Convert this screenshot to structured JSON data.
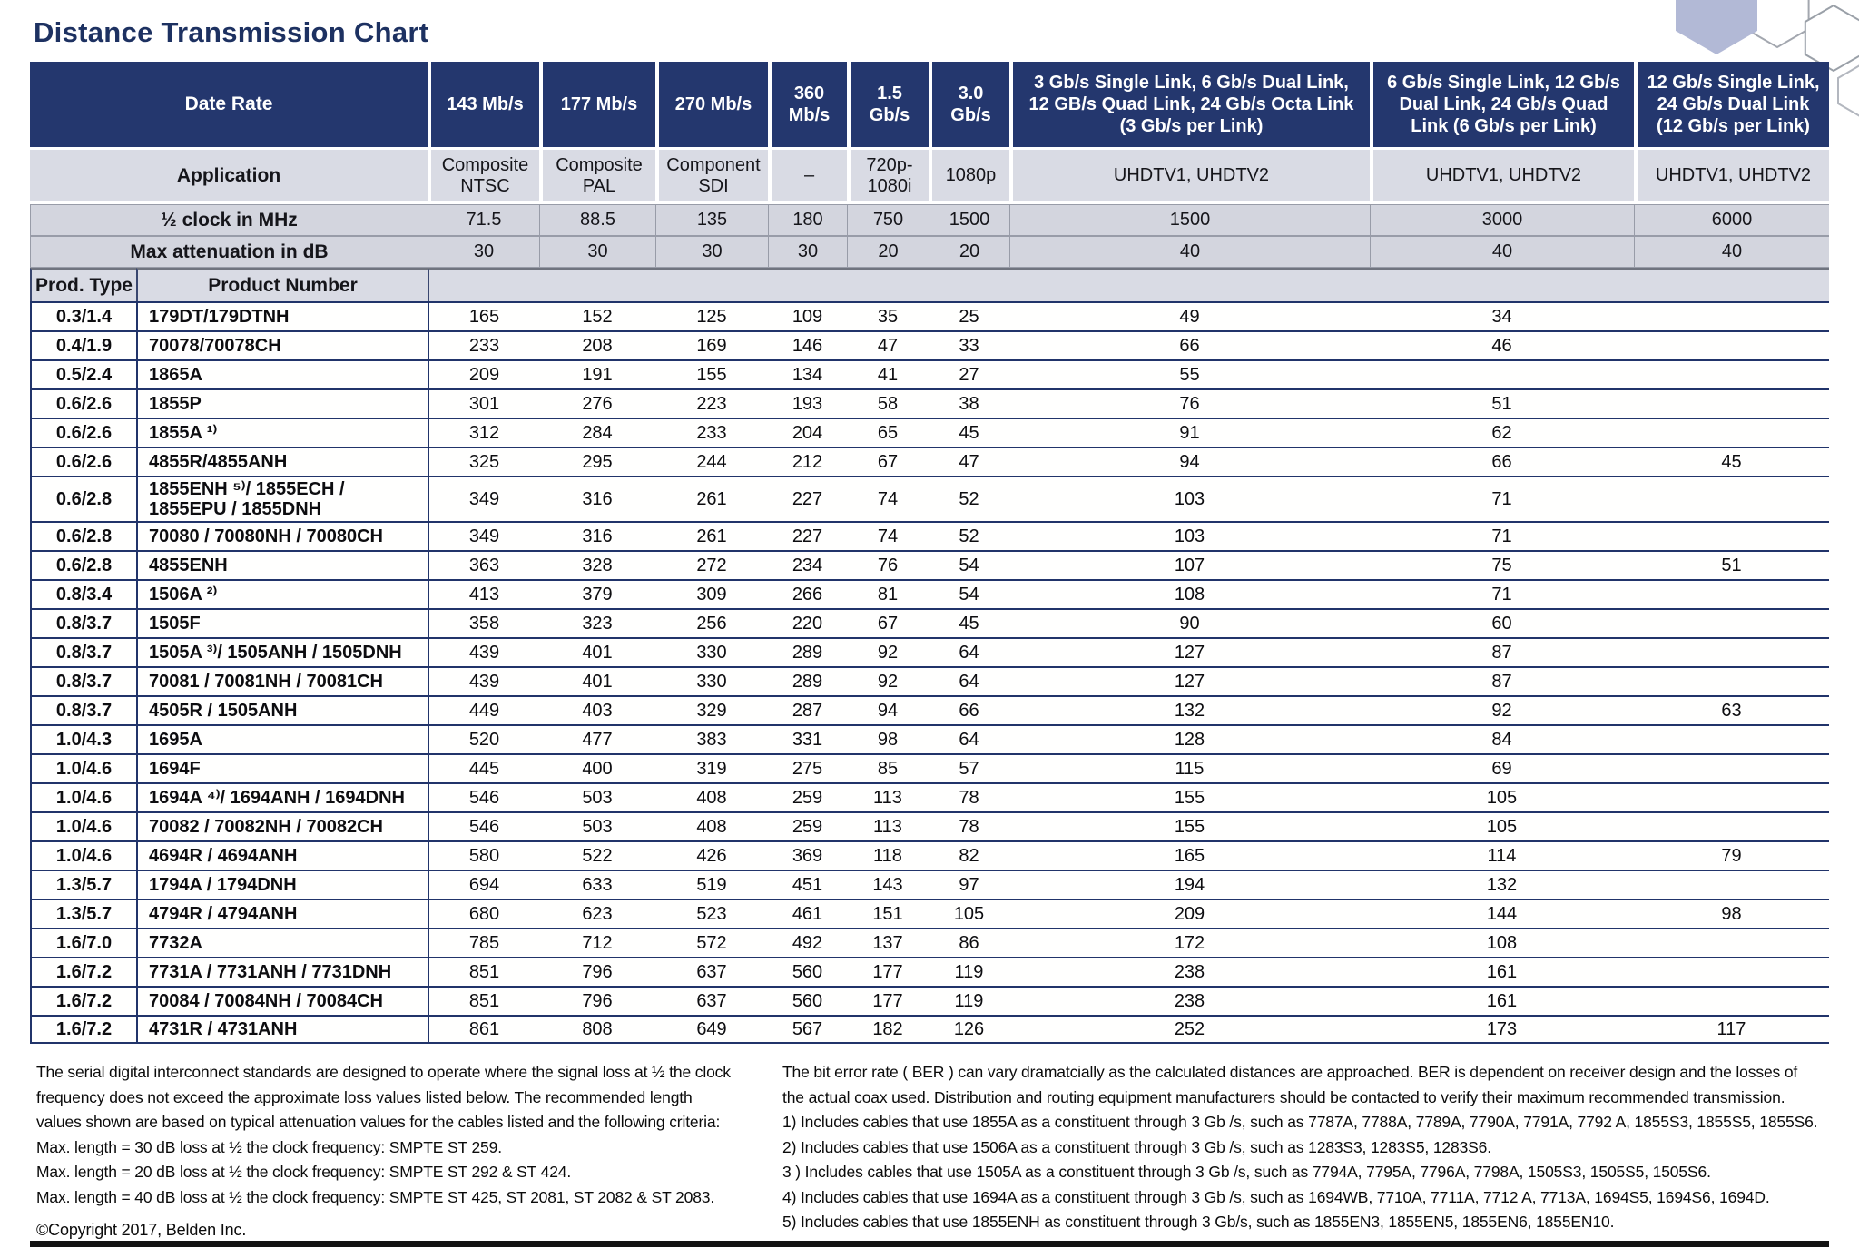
{
  "title": "Distance Transmission Chart",
  "colors": {
    "header_navy": "#24376e",
    "band_gray": "#d9dbe4",
    "row_line_navy": "#21346a",
    "hexagon_fill": "#b2b9d6"
  },
  "table": {
    "corner_labels": {
      "date_rate": "Date Rate",
      "application": "Application",
      "half_clock": "½ clock in MHz",
      "max_attenuation": "Max attenuation in dB",
      "prod_type": "Prod. Type",
      "product_number": "Product Number"
    },
    "columns": [
      {
        "rate": "143 Mb/s",
        "application": "Composite NTSC",
        "half_clock_mhz": "71.5",
        "max_attenuation_db": "30"
      },
      {
        "rate": "177 Mb/s",
        "application": "Composite PAL",
        "half_clock_mhz": "88.5",
        "max_attenuation_db": "30"
      },
      {
        "rate": "270 Mb/s",
        "application": "Component SDI",
        "half_clock_mhz": "135",
        "max_attenuation_db": "30"
      },
      {
        "rate": "360 Mb/s",
        "application": "–",
        "half_clock_mhz": "180",
        "max_attenuation_db": "30"
      },
      {
        "rate": "1.5 Gb/s",
        "application": "720p-1080i",
        "half_clock_mhz": "750",
        "max_attenuation_db": "20"
      },
      {
        "rate": "3.0 Gb/s",
        "application": "1080p",
        "half_clock_mhz": "1500",
        "max_attenuation_db": "20"
      },
      {
        "rate": "3 Gb/s Single Link, 6 Gb/s Dual Link, 12 GB/s Quad Link, 24 Gb/s Octa Link (3 Gb/s per Link)",
        "application": "UHDTV1, UHDTV2",
        "half_clock_mhz": "1500",
        "max_attenuation_db": "40"
      },
      {
        "rate": "6 Gb/s Single Link, 12 Gb/s Dual Link, 24 Gb/s Quad Link (6 Gb/s per Link)",
        "application": "UHDTV1, UHDTV2",
        "half_clock_mhz": "3000",
        "max_attenuation_db": "40"
      },
      {
        "rate": "12 Gb/s Single Link, 24 Gb/s Dual Link (12 Gb/s per Link)",
        "application": "UHDTV1, UHDTV2",
        "half_clock_mhz": "6000",
        "max_attenuation_db": "40"
      }
    ],
    "rows": [
      {
        "prod_type": "0.3/1.4",
        "product_number": "179DT/179DTNH",
        "distances": [
          "165",
          "152",
          "125",
          "109",
          "35",
          "25",
          "49",
          "34",
          ""
        ]
      },
      {
        "prod_type": "0.4/1.9",
        "product_number": "70078/70078CH",
        "distances": [
          "233",
          "208",
          "169",
          "146",
          "47",
          "33",
          "66",
          "46",
          ""
        ]
      },
      {
        "prod_type": "0.5/2.4",
        "product_number": "1865A",
        "distances": [
          "209",
          "191",
          "155",
          "134",
          "41",
          "27",
          "55",
          "",
          ""
        ]
      },
      {
        "prod_type": "0.6/2.6",
        "product_number": "1855P",
        "distances": [
          "301",
          "276",
          "223",
          "193",
          "58",
          "38",
          "76",
          "51",
          ""
        ]
      },
      {
        "prod_type": "0.6/2.6",
        "product_number": "1855A ¹⁾",
        "distances": [
          "312",
          "284",
          "233",
          "204",
          "65",
          "45",
          "91",
          "62",
          ""
        ]
      },
      {
        "prod_type": "0.6/2.6",
        "product_number": "4855R/4855ANH",
        "distances": [
          "325",
          "295",
          "244",
          "212",
          "67",
          "47",
          "94",
          "66",
          "45"
        ]
      },
      {
        "prod_type": "0.6/2.8",
        "product_number": "1855ENH ⁵⁾/ 1855ECH / 1855EPU / 1855DNH",
        "distances": [
          "349",
          "316",
          "261",
          "227",
          "74",
          "52",
          "103",
          "71",
          ""
        ]
      },
      {
        "prod_type": "0.6/2.8",
        "product_number": "70080 / 70080NH / 70080CH",
        "distances": [
          "349",
          "316",
          "261",
          "227",
          "74",
          "52",
          "103",
          "71",
          ""
        ]
      },
      {
        "prod_type": "0.6/2.8",
        "product_number": "4855ENH",
        "distances": [
          "363",
          "328",
          "272",
          "234",
          "76",
          "54",
          "107",
          "75",
          "51"
        ]
      },
      {
        "prod_type": "0.8/3.4",
        "product_number": "1506A ²⁾",
        "distances": [
          "413",
          "379",
          "309",
          "266",
          "81",
          "54",
          "108",
          "71",
          ""
        ]
      },
      {
        "prod_type": "0.8/3.7",
        "product_number": "1505F",
        "distances": [
          "358",
          "323",
          "256",
          "220",
          "67",
          "45",
          "90",
          "60",
          ""
        ]
      },
      {
        "prod_type": "0.8/3.7",
        "product_number": "1505A ³⁾/ 1505ANH / 1505DNH",
        "distances": [
          "439",
          "401",
          "330",
          "289",
          "92",
          "64",
          "127",
          "87",
          ""
        ]
      },
      {
        "prod_type": "0.8/3.7",
        "product_number": "70081 / 70081NH / 70081CH",
        "distances": [
          "439",
          "401",
          "330",
          "289",
          "92",
          "64",
          "127",
          "87",
          ""
        ]
      },
      {
        "prod_type": "0.8/3.7",
        "product_number": "4505R / 1505ANH",
        "distances": [
          "449",
          "403",
          "329",
          "287",
          "94",
          "66",
          "132",
          "92",
          "63"
        ]
      },
      {
        "prod_type": "1.0/4.3",
        "product_number": "1695A",
        "distances": [
          "520",
          "477",
          "383",
          "331",
          "98",
          "64",
          "128",
          "84",
          ""
        ]
      },
      {
        "prod_type": "1.0/4.6",
        "product_number": "1694F",
        "distances": [
          "445",
          "400",
          "319",
          "275",
          "85",
          "57",
          "115",
          "69",
          ""
        ]
      },
      {
        "prod_type": "1.0/4.6",
        "product_number": "1694A ⁴⁾/ 1694ANH / 1694DNH",
        "distances": [
          "546",
          "503",
          "408",
          "259",
          "113",
          "78",
          "155",
          "105",
          ""
        ]
      },
      {
        "prod_type": "1.0/4.6",
        "product_number": "70082 / 70082NH / 70082CH",
        "distances": [
          "546",
          "503",
          "408",
          "259",
          "113",
          "78",
          "155",
          "105",
          ""
        ]
      },
      {
        "prod_type": "1.0/4.6",
        "product_number": "4694R / 4694ANH",
        "distances": [
          "580",
          "522",
          "426",
          "369",
          "118",
          "82",
          "165",
          "114",
          "79"
        ]
      },
      {
        "prod_type": "1.3/5.7",
        "product_number": "1794A / 1794DNH",
        "distances": [
          "694",
          "633",
          "519",
          "451",
          "143",
          "97",
          "194",
          "132",
          ""
        ]
      },
      {
        "prod_type": "1.3/5.7",
        "product_number": "4794R / 4794ANH",
        "distances": [
          "680",
          "623",
          "523",
          "461",
          "151",
          "105",
          "209",
          "144",
          "98"
        ]
      },
      {
        "prod_type": "1.6/7.0",
        "product_number": "7732A",
        "distances": [
          "785",
          "712",
          "572",
          "492",
          "137",
          "86",
          "172",
          "108",
          ""
        ]
      },
      {
        "prod_type": "1.6/7.2",
        "product_number": "7731A / 7731ANH / 7731DNH",
        "distances": [
          "851",
          "796",
          "637",
          "560",
          "177",
          "119",
          "238",
          "161",
          ""
        ]
      },
      {
        "prod_type": "1.6/7.2",
        "product_number": "70084 / 70084NH / 70084CH",
        "distances": [
          "851",
          "796",
          "637",
          "560",
          "177",
          "119",
          "238",
          "161",
          ""
        ]
      },
      {
        "prod_type": "1.6/7.2",
        "product_number": "4731R / 4731ANH",
        "distances": [
          "861",
          "808",
          "649",
          "567",
          "182",
          "126",
          "252",
          "173",
          "117"
        ]
      }
    ]
  },
  "footnotes": {
    "left_lines": [
      "The serial digital interconnect standards are designed to operate where the signal loss at ½ the clock",
      "frequency does not exceed the approximate loss values listed below. The recommended length",
      "values shown are based on typical attenuation values for the cables listed and the following criteria:",
      "Max. length = 30 dB loss at ½ the clock frequency: SMPTE ST 259.",
      "Max. length = 20 dB loss at ½ the clock frequency: SMPTE ST 292 & ST 424.",
      "Max. length = 40 dB loss at ½ the clock frequency: SMPTE ST 425, ST 2081, ST 2082 & ST 2083."
    ],
    "copyright": "©Copyright 2017, Belden Inc.",
    "right_lines": [
      "The bit error rate ( BER ) can vary dramatcially as the calculated distances are approached. BER is dependent on receiver design and the losses of",
      "the actual coax used. Distribution and routing equipment manufacturers should be contacted to verify their maximum recommended transmission.",
      "1) Includes cables that use 1855A as a constituent through 3 Gb /s, such as 7787A, 7788A, 7789A, 7790A, 7791A, 7792 A, 1855S3, 1855S5, 1855S6.",
      "2) Includes cables that use 1506A as a constituent through 3 Gb /s, such as 1283S3, 1283S5, 1283S6.",
      "3 ) Includes cables that use 1505A as a constituent through 3 Gb /s, such as 7794A, 7795A, 7796A, 7798A, 1505S3, 1505S5, 1505S6.",
      "4) Includes cables that use 1694A as a constituent through 3 Gb /s, such as 1694WB, 7710A, 7711A, 7712 A, 7713A, 1694S5, 1694S6, 1694D.",
      "5) Includes cables that use 1855ENH as constituent through 3 Gb/s, such as 1855EN3, 1855EN5, 1855EN6, 1855EN10."
    ]
  }
}
